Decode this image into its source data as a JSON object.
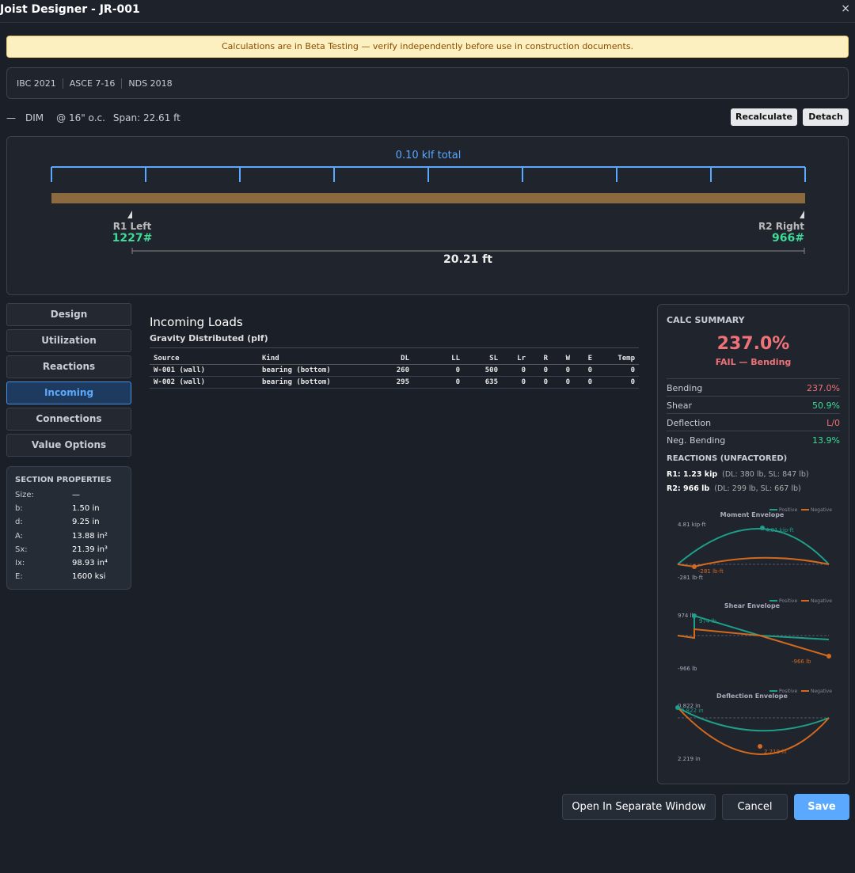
{
  "header": {
    "title": "Joist Designer - JR-001",
    "close": "×"
  },
  "banner": "Calculations are in Beta Testing — verify independently before use in construction documents.",
  "codes": [
    "IBC 2021",
    "ASCE 7-16",
    "NDS 2018"
  ],
  "toolbar": {
    "marker": "—",
    "label": "DIM",
    "spacing": "@ 16\" o.c.",
    "span": "Span: 22.61 ft",
    "buttons": [
      "Recalculate",
      "Detach"
    ]
  },
  "diagram": {
    "load": "0.10 klf total",
    "supports": [
      {
        "name": "R1 Left",
        "reaction": "1227#"
      },
      {
        "name": "R2 Right",
        "reaction": "966#"
      }
    ],
    "dimension": "20.21 ft"
  },
  "nav": {
    "tabs": [
      "Design",
      "Utilization",
      "Reactions",
      "Incoming",
      "Connections",
      "Value Options"
    ],
    "active": 3
  },
  "section_properties": {
    "title": "SECTION PROPERTIES",
    "rows": [
      [
        "Size:",
        "—"
      ],
      [
        "b:",
        "1.50 in"
      ],
      [
        "d:",
        "9.25 in"
      ],
      [
        "A:",
        "13.88 in²"
      ],
      [
        "Sx:",
        "21.39 in³"
      ],
      [
        "Ix:",
        "98.93 in⁴"
      ],
      [
        "E:",
        "1600 ksi"
      ]
    ]
  },
  "incoming": {
    "title": "Incoming Loads",
    "subtitle": "Gravity Distributed (plf)",
    "columns": [
      "Source",
      "Kind",
      "DL",
      "LL",
      "SL",
      "Lr",
      "R",
      "W",
      "E",
      "Temp"
    ],
    "rows": [
      [
        "W-001 (wall)",
        "bearing (bottom)",
        260,
        0,
        500,
        0,
        0,
        0,
        0,
        0
      ],
      [
        "W-002 (wall)",
        "bearing (bottom)",
        295,
        0,
        635,
        0,
        0,
        0,
        0,
        0
      ]
    ]
  },
  "calc_summary": {
    "title": "CALC SUMMARY",
    "ratio": "237.0%",
    "status": "FAIL — Bending",
    "checks": [
      {
        "label": "Bending",
        "value": "237.0%",
        "color": "#f07178"
      },
      {
        "label": "Shear",
        "value": "50.9%",
        "color": "#3ddc97"
      },
      {
        "label": "Deflection",
        "value": "L/0",
        "color": "#f07178"
      },
      {
        "label": "Neg. Bending",
        "value": "13.9%",
        "color": "#3ddc97"
      }
    ],
    "reactions_title": "REACTIONS (UNFACTORED)",
    "reactions": [
      {
        "label": "R1: 1.23 kip",
        "detail": "(DL: 380 lb, SL: 847 lb)"
      },
      {
        "label": "R2: 966 lb",
        "detail": "(DL: 299 lb, SL: 667 lb)"
      }
    ]
  },
  "envelopes": [
    {
      "title": "Moment Envelope",
      "legend": [
        "Positive",
        "Negative"
      ],
      "max_label": "4.81 kip·ft",
      "min_label": "-281 lb·ft",
      "max_note": "4.81 kip·ft",
      "min_note": "-281 lb·ft"
    },
    {
      "title": "Shear Envelope",
      "legend": [
        "Positive",
        "Negative"
      ],
      "max_label": "974 lb",
      "min_label": "-966 lb",
      "max_note": "974 lb",
      "min_note": "-966 lb"
    },
    {
      "title": "Deflection Envelope",
      "legend": [
        "Positive",
        "Negative"
      ],
      "max_label": "0.822 in",
      "min_label": "2.219 in",
      "max_note": "0.822 in",
      "min_note": "2.219 in"
    }
  ],
  "footer": {
    "buttons": [
      "Open In Separate Window",
      "Cancel",
      "Save"
    ]
  }
}
